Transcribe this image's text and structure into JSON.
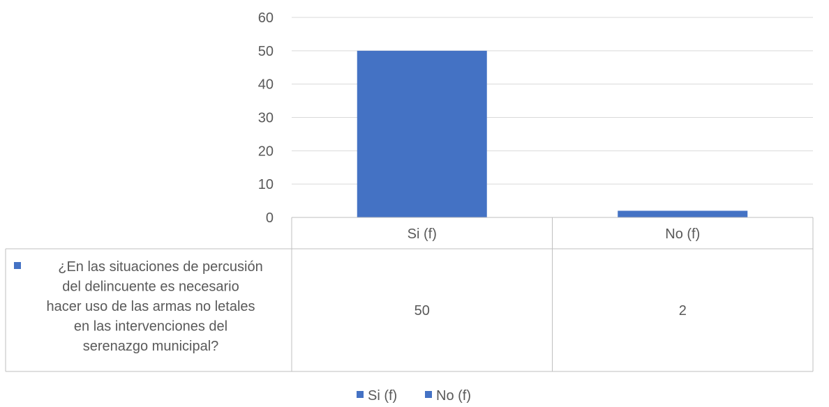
{
  "chart_data": {
    "type": "bar",
    "categories": [
      "Si (f)",
      "No (f)"
    ],
    "values": [
      50,
      2
    ],
    "series": [
      {
        "name": "¿En las situaciones de percusión del delincuente es necesario hacer uso de las armas no letales en las intervenciones del serenazgo municipal?",
        "name_lines": [
          "¿En las situaciones de percusión",
          "del delincuente es necesario",
          "hacer uso de las armas no letales",
          "en las intervenciones del",
          "serenazgo municipal?"
        ],
        "values": [
          50,
          2
        ]
      }
    ],
    "yticks": [
      "0",
      "10",
      "20",
      "30",
      "40",
      "50",
      "60"
    ],
    "ylim": [
      0,
      60
    ],
    "grid": true,
    "data_table": true,
    "legend": {
      "placement": "bottom",
      "entries": [
        "Si (f)",
        "No (f)"
      ]
    },
    "bar_color": "#4472C4",
    "grid_color": "#D9D9D9",
    "table_border_color": "#BFBFBF",
    "text_color": "#595959"
  }
}
